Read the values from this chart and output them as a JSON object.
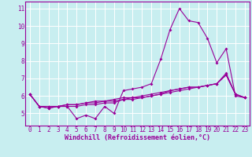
{
  "x": [
    0,
    1,
    2,
    3,
    4,
    5,
    6,
    7,
    8,
    9,
    10,
    11,
    12,
    13,
    14,
    15,
    16,
    17,
    18,
    19,
    20,
    21,
    22,
    23
  ],
  "line1": [
    6.1,
    5.4,
    5.3,
    5.4,
    5.4,
    4.7,
    4.9,
    4.7,
    5.4,
    5.0,
    6.3,
    6.4,
    6.5,
    6.7,
    8.1,
    9.8,
    11.0,
    10.3,
    10.2,
    9.3,
    7.9,
    8.7,
    6.0,
    5.9
  ],
  "line2": [
    6.1,
    5.4,
    5.4,
    5.4,
    5.5,
    5.5,
    5.6,
    5.7,
    5.7,
    5.8,
    5.9,
    5.9,
    6.0,
    6.1,
    6.2,
    6.3,
    6.4,
    6.5,
    6.5,
    6.6,
    6.7,
    7.2,
    6.1,
    5.9
  ],
  "line3": [
    6.1,
    5.4,
    5.3,
    5.4,
    5.4,
    5.4,
    5.5,
    5.5,
    5.6,
    5.6,
    5.8,
    5.8,
    5.9,
    6.0,
    6.1,
    6.3,
    6.4,
    6.5,
    6.5,
    6.6,
    6.7,
    7.2,
    6.1,
    5.9
  ],
  "line4": [
    6.1,
    5.4,
    5.4,
    5.4,
    5.5,
    5.5,
    5.6,
    5.6,
    5.7,
    5.7,
    5.8,
    5.9,
    5.9,
    6.0,
    6.1,
    6.2,
    6.3,
    6.4,
    6.5,
    6.6,
    6.7,
    7.3,
    6.1,
    5.9
  ],
  "line_color": "#990099",
  "bg_color": "#c8eef0",
  "grid_color": "#aadddd",
  "xlabel": "Windchill (Refroidissement éolien,°C)",
  "ylim": [
    4.3,
    11.4
  ],
  "xlim": [
    -0.5,
    23.5
  ],
  "yticks": [
    5,
    6,
    7,
    8,
    9,
    10,
    11
  ],
  "xticks": [
    0,
    1,
    2,
    3,
    4,
    5,
    6,
    7,
    8,
    9,
    10,
    11,
    12,
    13,
    14,
    15,
    16,
    17,
    18,
    19,
    20,
    21,
    22,
    23
  ],
  "tick_fontsize": 5.5,
  "xlabel_fontsize": 6.0,
  "marker_size": 2.0,
  "line_width": 0.8
}
